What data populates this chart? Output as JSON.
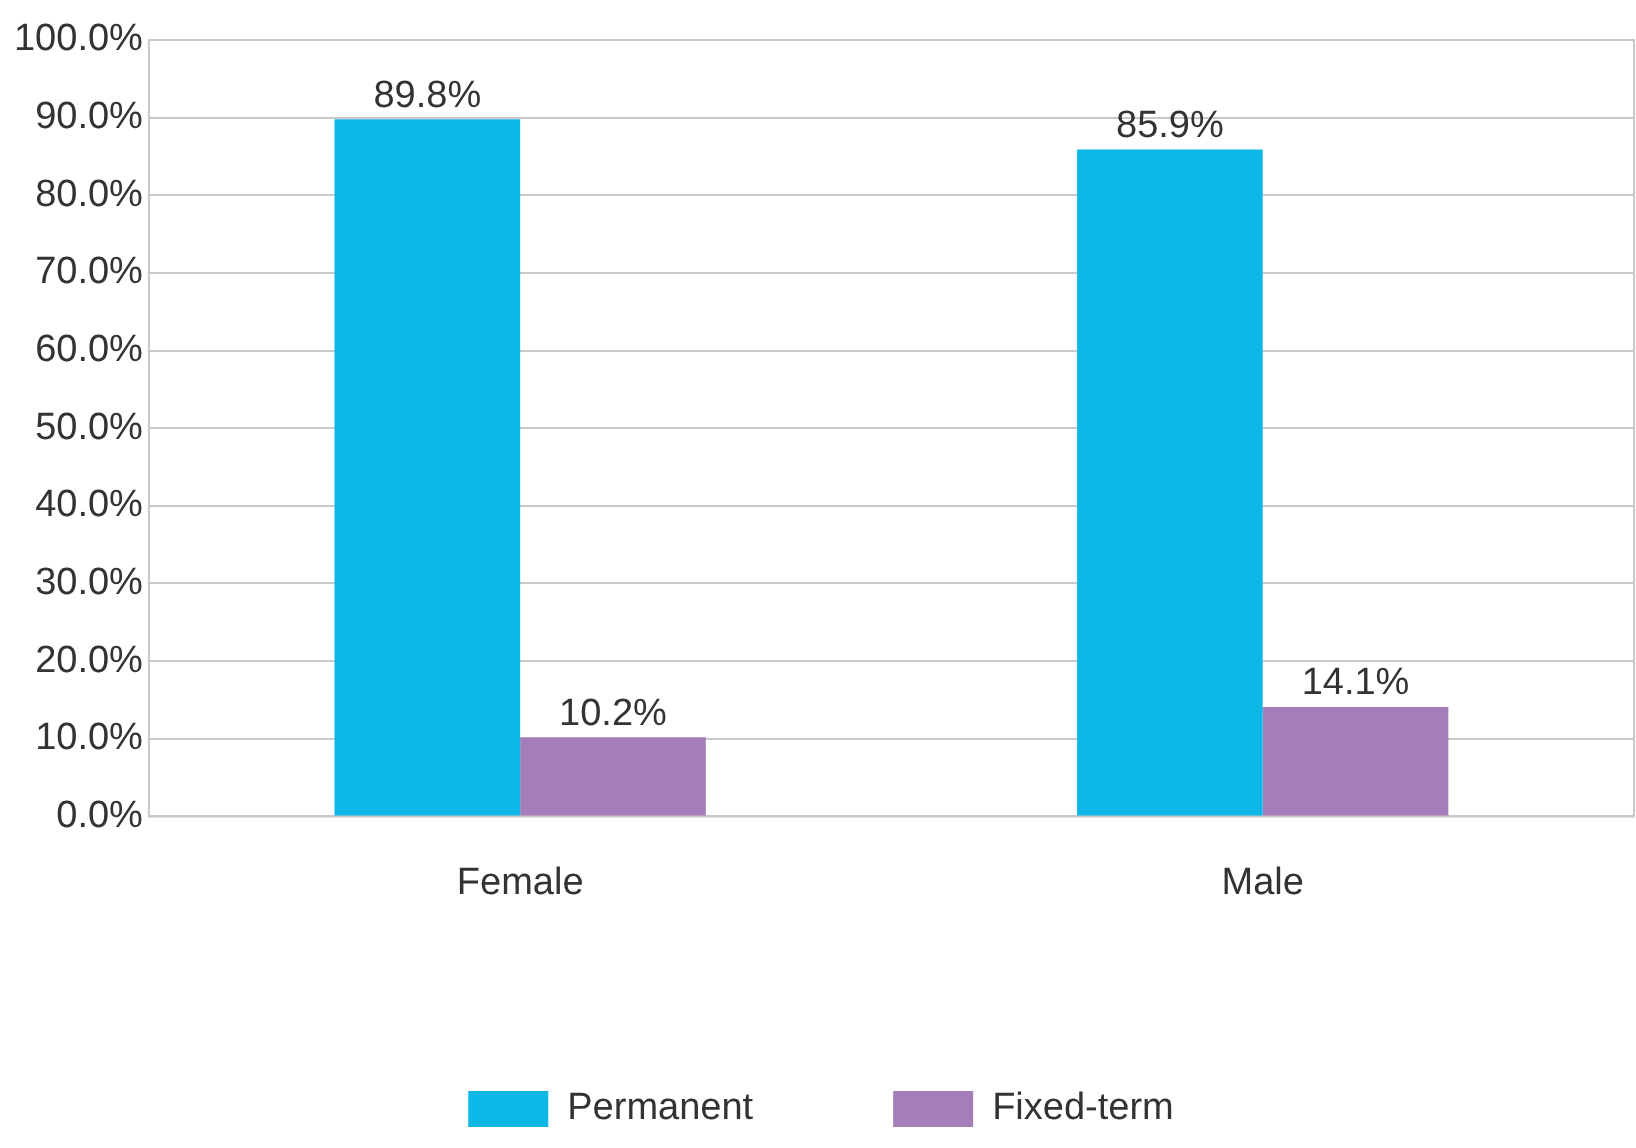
{
  "chart_data": {
    "type": "bar",
    "categories": [
      "Female",
      "Male"
    ],
    "series": [
      {
        "name": "Permanent",
        "color": "#0db7e6",
        "values": [
          89.8,
          85.9
        ],
        "value_labels": [
          "89.8%",
          "85.9%"
        ]
      },
      {
        "name": "Fixed-term",
        "color": "#a57db8",
        "values": [
          10.2,
          14.1
        ],
        "value_labels": [
          "10.2%",
          "14.1%"
        ]
      }
    ],
    "ylim": [
      0,
      100
    ],
    "yticks": [
      {
        "value": 0,
        "label": "0.0%"
      },
      {
        "value": 10,
        "label": "10.0%"
      },
      {
        "value": 20,
        "label": "20.0%"
      },
      {
        "value": 30,
        "label": "30.0%"
      },
      {
        "value": 40,
        "label": "40.0%"
      },
      {
        "value": 50,
        "label": "50.0%"
      },
      {
        "value": 60,
        "label": "60.0%"
      },
      {
        "value": 70,
        "label": "70.0%"
      },
      {
        "value": 80,
        "label": "80.0%"
      },
      {
        "value": 90,
        "label": "90.0%"
      },
      {
        "value": 100,
        "label": "100.0%"
      }
    ],
    "grid": "y",
    "legend": "bottom"
  }
}
